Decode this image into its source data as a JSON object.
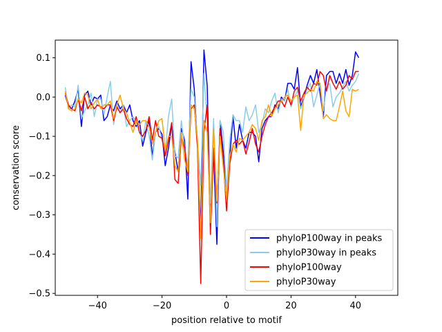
{
  "chart_data": {
    "type": "line",
    "title": "",
    "xlabel": "position relative to motif",
    "ylabel": "conservation score",
    "xlim": [
      -53.1,
      53.1
    ],
    "ylim": [
      -0.505,
      0.145
    ],
    "xticks": [
      -40,
      -20,
      0,
      20,
      40
    ],
    "yticks": [
      -0.5,
      -0.4,
      -0.3,
      -0.2,
      -0.1,
      0.0,
      0.1
    ],
    "xtick_labels": [
      "−40",
      "−20",
      "0",
      "20",
      "40"
    ],
    "ytick_labels": [
      "−0.5",
      "−0.4",
      "−0.3",
      "−0.2",
      "−0.1",
      "0.0",
      "0.1"
    ],
    "grid": false,
    "legend_position": "lower-right",
    "x_start": -50,
    "x_step": 1,
    "series": [
      {
        "name": "phyloP100way in peaks",
        "color": "#0000ff",
        "values": [
          0.005,
          -0.025,
          -0.03,
          -0.01,
          0.02,
          -0.075,
          0.005,
          0.015,
          -0.02,
          0.0,
          -0.005,
          0.005,
          -0.06,
          -0.05,
          -0.02,
          -0.035,
          -0.01,
          -0.03,
          -0.02,
          -0.04,
          -0.02,
          -0.06,
          -0.075,
          -0.06,
          -0.125,
          -0.09,
          -0.06,
          -0.15,
          -0.09,
          -0.08,
          -0.095,
          -0.175,
          -0.13,
          -0.07,
          -0.14,
          -0.19,
          -0.08,
          -0.11,
          -0.26,
          0.09,
          0.02,
          -0.12,
          -0.34,
          0.12,
          0.03,
          -0.31,
          -0.14,
          -0.375,
          -0.06,
          -0.14,
          -0.26,
          -0.15,
          -0.05,
          -0.13,
          -0.07,
          -0.11,
          -0.13,
          -0.09,
          -0.09,
          -0.1,
          -0.165,
          -0.08,
          -0.06,
          -0.05,
          -0.05,
          -0.02,
          -0.03,
          0.0,
          -0.01,
          0.035,
          0.035,
          0.02,
          0.075,
          -0.025,
          0.0,
          0.03,
          0.055,
          0.035,
          0.07,
          0.01,
          -0.05,
          0.055,
          0.065,
          0.065,
          0.035,
          0.06,
          0.035,
          0.07,
          0.03,
          0.055,
          0.115,
          0.1
        ]
      },
      {
        "name": "phyloP30way in peaks",
        "color": "#87ceeb",
        "values": [
          0.025,
          -0.03,
          -0.02,
          -0.025,
          0.03,
          -0.055,
          -0.035,
          -0.02,
          0.01,
          -0.05,
          -0.005,
          -0.005,
          -0.045,
          0.0,
          0.04,
          -0.07,
          -0.02,
          -0.04,
          -0.02,
          -0.075,
          -0.06,
          -0.05,
          -0.06,
          -0.09,
          -0.11,
          -0.06,
          -0.1,
          -0.16,
          -0.09,
          -0.075,
          -0.11,
          -0.14,
          -0.05,
          -0.005,
          -0.15,
          -0.155,
          -0.06,
          -0.13,
          -0.17,
          0.02,
          0.0,
          -0.11,
          -0.225,
          0.06,
          -0.06,
          -0.27,
          -0.055,
          -0.33,
          -0.06,
          -0.09,
          -0.24,
          -0.11,
          -0.045,
          -0.06,
          -0.06,
          -0.09,
          -0.025,
          -0.06,
          -0.045,
          -0.02,
          -0.09,
          -0.07,
          -0.03,
          -0.04,
          -0.01,
          0.01,
          -0.04,
          -0.005,
          -0.01,
          0.02,
          -0.025,
          0.0,
          0.015,
          -0.03,
          -0.005,
          0.02,
          0.035,
          -0.025,
          0.005,
          0.035,
          -0.035,
          0.025,
          0.035,
          -0.025,
          0.0,
          0.01,
          0.025,
          0.04,
          0.015,
          0.03,
          0.04,
          0.06
        ]
      },
      {
        "name": "phyloP100way",
        "color": "#ff0000",
        "values": [
          0.01,
          -0.02,
          -0.03,
          -0.035,
          -0.005,
          -0.035,
          0.0,
          -0.03,
          -0.015,
          -0.03,
          -0.02,
          -0.025,
          -0.03,
          -0.02,
          -0.02,
          -0.06,
          -0.025,
          -0.04,
          -0.03,
          -0.055,
          -0.07,
          -0.075,
          -0.05,
          -0.09,
          -0.1,
          -0.085,
          -0.05,
          -0.11,
          -0.06,
          -0.1,
          -0.105,
          -0.15,
          -0.11,
          -0.065,
          -0.21,
          -0.22,
          -0.1,
          -0.13,
          -0.2,
          -0.03,
          -0.02,
          -0.13,
          -0.475,
          -0.09,
          -0.02,
          -0.35,
          -0.13,
          -0.27,
          -0.08,
          -0.16,
          -0.29,
          -0.17,
          -0.12,
          -0.11,
          -0.12,
          -0.11,
          -0.145,
          -0.115,
          -0.08,
          -0.12,
          -0.14,
          -0.1,
          -0.07,
          -0.05,
          -0.04,
          -0.025,
          -0.01,
          -0.01,
          -0.025,
          0.0,
          -0.02,
          0.015,
          0.025,
          -0.01,
          0.01,
          0.025,
          0.015,
          0.035,
          0.03,
          0.065,
          0.055,
          0.015,
          0.055,
          0.035,
          0.02,
          0.04,
          0.02,
          0.03,
          0.055,
          0.045,
          0.065,
          0.065
        ]
      },
      {
        "name": "phyloP30way",
        "color": "#ffa500",
        "values": [
          0.015,
          -0.03,
          -0.035,
          -0.03,
          -0.005,
          -0.015,
          0.01,
          0.005,
          -0.03,
          -0.015,
          -0.005,
          -0.03,
          -0.02,
          -0.02,
          -0.01,
          -0.055,
          -0.02,
          0.005,
          -0.03,
          -0.04,
          -0.065,
          -0.09,
          -0.06,
          -0.07,
          -0.06,
          -0.06,
          -0.075,
          -0.12,
          -0.09,
          -0.06,
          -0.055,
          -0.135,
          -0.1,
          -0.1,
          -0.175,
          -0.19,
          -0.09,
          -0.16,
          -0.19,
          -0.02,
          -0.03,
          -0.11,
          -0.36,
          -0.06,
          -0.09,
          -0.32,
          -0.08,
          -0.265,
          -0.1,
          -0.18,
          -0.26,
          -0.15,
          -0.12,
          -0.14,
          -0.105,
          -0.11,
          -0.1,
          -0.09,
          -0.07,
          -0.08,
          -0.11,
          -0.06,
          -0.05,
          -0.02,
          -0.05,
          -0.03,
          -0.02,
          -0.01,
          0.0,
          0.005,
          -0.01,
          0.0,
          0.005,
          -0.085,
          0.005,
          0.01,
          0.02,
          0.015,
          0.04,
          0.035,
          -0.055,
          -0.045,
          -0.055,
          -0.06,
          -0.06,
          -0.025,
          0.015,
          -0.035,
          -0.05,
          0.02,
          0.015,
          0.02
        ]
      }
    ]
  }
}
